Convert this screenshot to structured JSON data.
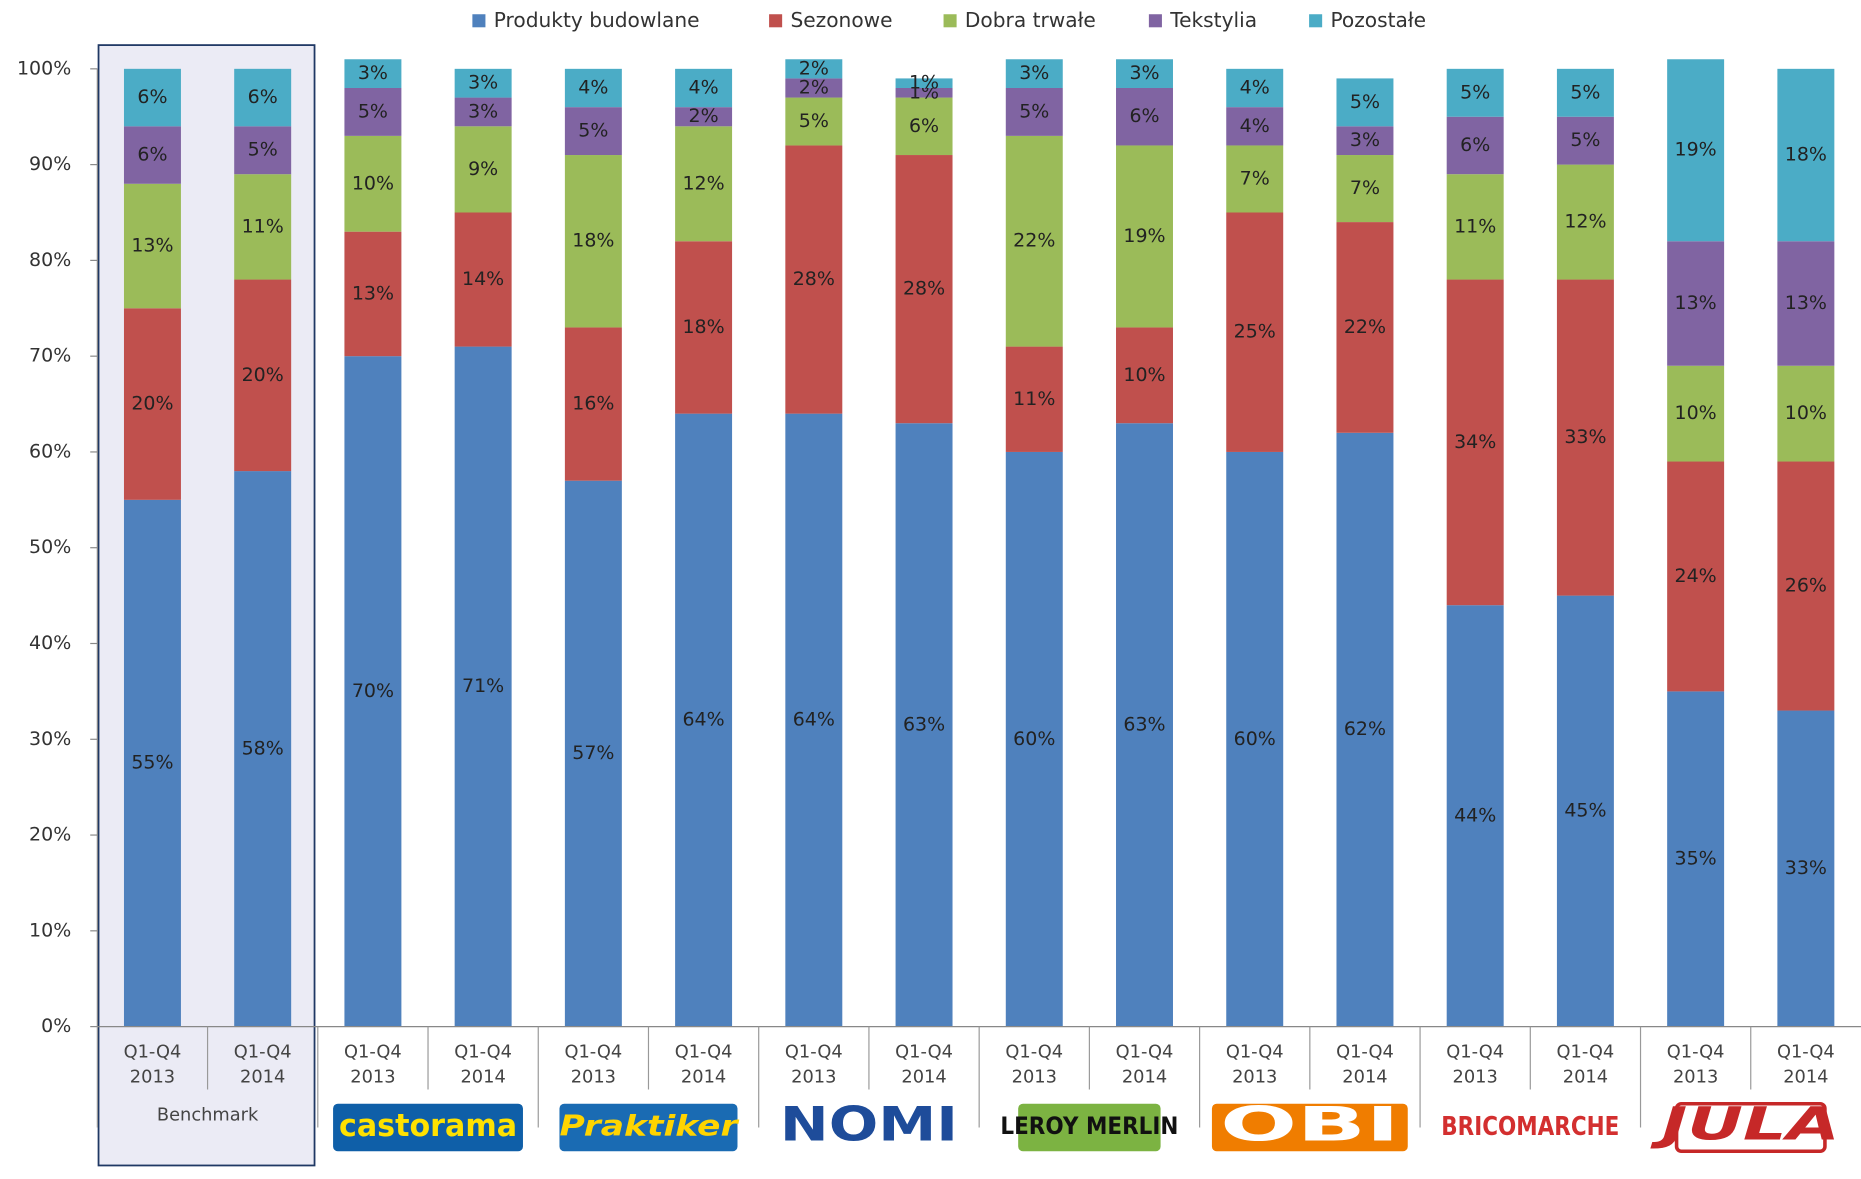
{
  "chart_data": {
    "type": "stacked_bar",
    "categories": [
      "Q1-Q4 2013",
      "Q1-Q4 2014",
      "Q1-Q4 2013",
      "Q1-Q4 2014",
      "Q1-Q4 2013",
      "Q1-Q4 2014",
      "Q1-Q4 2013",
      "Q1-Q4 2014",
      "Q1-Q4 2013",
      "Q1-Q4 2014",
      "Q1-Q4 2013",
      "Q1-Q4 2014",
      "Q1-Q4 2013",
      "Q1-Q4 2014",
      "Q1-Q4 2013",
      "Q1-Q4 2014"
    ],
    "groups": [
      "Benchmark",
      "castorama",
      "Praktiker",
      "NOMI",
      "LEROY MERLIN",
      "OBI",
      "BRICOMARCHE",
      "JULA"
    ],
    "series": [
      {
        "name": "Produkty budowlane",
        "color": "#4f81bd",
        "values": [
          55,
          58,
          70,
          71,
          57,
          64,
          64,
          63,
          60,
          63,
          60,
          62,
          44,
          45,
          35,
          33
        ],
        "value_labels": [
          "55%",
          "58%",
          "70%",
          "71%",
          "57%",
          "64%",
          "64%",
          "63%",
          "60%",
          "63%",
          "60%",
          "62%",
          "44%",
          "45%",
          "35%",
          "33%"
        ]
      },
      {
        "name": "Sezonowe",
        "color": "#c0504d",
        "values": [
          20,
          20,
          13,
          14,
          16,
          18,
          28,
          28,
          11,
          10,
          25,
          22,
          34,
          33,
          24,
          26
        ],
        "value_labels": [
          "20%",
          "20%",
          "13%",
          "14%",
          "16%",
          "18%",
          "28%",
          "28%",
          "11%",
          "10%",
          "25%",
          "22%",
          "34%",
          "33%",
          "24%",
          "26%"
        ]
      },
      {
        "name": "Dobra trwałe",
        "color": "#9bbb59",
        "values": [
          13,
          11,
          10,
          9,
          18,
          12,
          5,
          6,
          22,
          19,
          7,
          7,
          11,
          12,
          10,
          10
        ],
        "value_labels": [
          "13%",
          "11%",
          "10%",
          "9%",
          "18%",
          "12%",
          "5%",
          "6%",
          "22%",
          "19%",
          "7%",
          "7%",
          "11%",
          "12%",
          "10%",
          "10%"
        ]
      },
      {
        "name": "Tekstylia",
        "color": "#8064a2",
        "values": [
          6,
          5,
          5,
          3,
          5,
          2,
          2,
          1,
          5,
          6,
          4,
          3,
          6,
          5,
          13,
          13
        ],
        "value_labels": [
          "6%",
          "5%",
          "5%",
          "3%",
          "5%",
          "2%",
          "2%",
          "1%",
          "5%",
          "6%",
          "4%",
          "3%",
          "6%",
          "5%",
          "13%",
          "13%"
        ]
      },
      {
        "name": "Pozostałe",
        "color": "#4bacc6",
        "values": [
          6,
          6,
          3,
          3,
          4,
          4,
          2,
          1,
          3,
          3,
          4,
          5,
          5,
          5,
          19,
          18
        ],
        "value_labels": [
          "6%",
          "6%",
          "3%",
          "3%",
          "4%",
          "4%",
          "2%",
          "1%",
          "3%",
          "3%",
          "4%",
          "5%",
          "5%",
          "5%",
          "19%",
          "18%"
        ]
      }
    ],
    "ylim": [
      0,
      100
    ],
    "yticks": [
      {
        "value": 0,
        "label": "0%"
      },
      {
        "value": 10,
        "label": "10%"
      },
      {
        "value": 20,
        "label": "20%"
      },
      {
        "value": 30,
        "label": "30%"
      },
      {
        "value": 40,
        "label": "40%"
      },
      {
        "value": 50,
        "label": "50%"
      },
      {
        "value": 60,
        "label": "60%"
      },
      {
        "value": 70,
        "label": "70%"
      },
      {
        "value": 80,
        "label": "80%"
      },
      {
        "value": 90,
        "label": "90%"
      },
      {
        "value": 100,
        "label": "100%"
      }
    ],
    "legend": "top"
  }
}
